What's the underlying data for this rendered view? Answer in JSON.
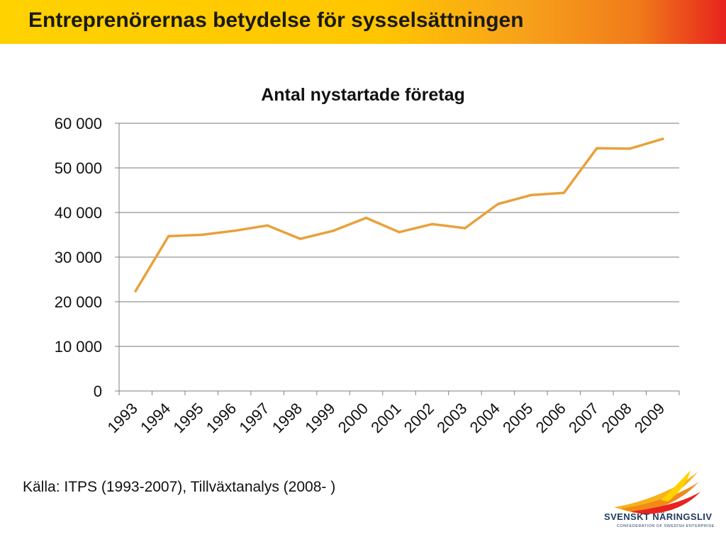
{
  "header": {
    "title": "Entreprenörernas betydelse för sysselsättningen"
  },
  "source": {
    "text": "Källa: ITPS (1993-2007), Tillväxtanalys (2008- )"
  },
  "logo": {
    "name": "SVENSKT NÄRINGSLIV",
    "tagline": "CONFEDERATION OF SWEDISH ENTERPRISE",
    "icon": "flame-wings-icon"
  },
  "colors": {
    "line": "#e8a13a",
    "grid": "#a6a6a6",
    "axis": "#7f7f7f",
    "header_start": "#ffd200",
    "header_end": "#e8231e",
    "logo_text": "#1f3a5f"
  },
  "chart_data": {
    "type": "line",
    "title": "Antal nystartade företag",
    "xlabel": "",
    "ylabel": "",
    "categories": [
      "1993",
      "1994",
      "1995",
      "1996",
      "1997",
      "1998",
      "1999",
      "2000",
      "2001",
      "2002",
      "2003",
      "2004",
      "2005",
      "2006",
      "2007",
      "2008",
      "2009"
    ],
    "values": [
      22400,
      34700,
      35000,
      35900,
      37100,
      34100,
      35900,
      38800,
      35600,
      37400,
      36500,
      41900,
      43900,
      44400,
      54400,
      54300,
      56500
    ],
    "ylim": [
      0,
      60000
    ],
    "yticks": [
      0,
      10000,
      20000,
      30000,
      40000,
      50000,
      60000
    ],
    "ytick_labels": [
      "0",
      "10 000",
      "20 000",
      "30 000",
      "40 000",
      "50 000",
      "60 000"
    ],
    "grid": true,
    "legend": "none"
  }
}
